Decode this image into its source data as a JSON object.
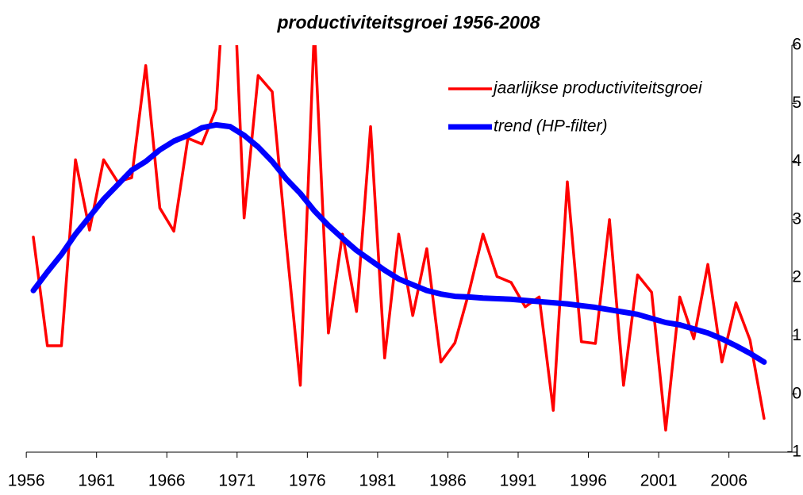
{
  "chart_data": {
    "type": "line",
    "title": "productiviteitsgroei 1956-2008",
    "categories": [
      "1956",
      null,
      null,
      null,
      null,
      "1961",
      null,
      null,
      null,
      null,
      "1966",
      null,
      null,
      null,
      null,
      "1971",
      null,
      null,
      null,
      null,
      "1976",
      null,
      null,
      null,
      null,
      "1981",
      null,
      null,
      null,
      null,
      "1986",
      null,
      null,
      null,
      null,
      "1991",
      null,
      null,
      null,
      null,
      "1996",
      null,
      null,
      null,
      null,
      "2001",
      null,
      null,
      null,
      null,
      "2006",
      null,
      null
    ],
    "series": [
      {
        "name": "jaarlijkse productiviteitsgroei",
        "color": "#ff0000",
        "values": [
          2.7,
          0.83,
          0.83,
          4.03,
          2.82,
          4.03,
          3.65,
          3.72,
          5.65,
          3.2,
          2.8,
          4.4,
          4.3,
          4.9,
          8.7,
          3.03,
          5.48,
          5.2,
          2.6,
          0.15,
          6.3,
          1.05,
          2.75,
          1.42,
          4.6,
          0.62,
          2.75,
          1.35,
          2.5,
          0.55,
          0.88,
          1.75,
          2.75,
          2.02,
          1.92,
          1.5,
          1.67,
          -0.28,
          3.65,
          0.9,
          0.87,
          3.0,
          0.15,
          2.05,
          1.75,
          -0.62,
          1.67,
          0.95,
          2.23,
          0.55,
          1.57,
          0.93,
          -0.42
        ]
      },
      {
        "name": "trend (HP-filter)",
        "color": "#0000ff",
        "values": [
          1.78,
          2.1,
          2.4,
          2.75,
          3.05,
          3.35,
          3.6,
          3.85,
          4.0,
          4.2,
          4.35,
          4.45,
          4.58,
          4.63,
          4.6,
          4.45,
          4.25,
          4.0,
          3.7,
          3.45,
          3.15,
          2.9,
          2.68,
          2.47,
          2.3,
          2.13,
          1.98,
          1.88,
          1.78,
          1.72,
          1.68,
          1.67,
          1.65,
          1.64,
          1.63,
          1.61,
          1.59,
          1.57,
          1.55,
          1.52,
          1.49,
          1.45,
          1.41,
          1.37,
          1.3,
          1.23,
          1.19,
          1.12,
          1.05,
          0.95,
          0.83,
          0.7,
          0.55
        ]
      }
    ],
    "ylim": [
      -1,
      6
    ],
    "yticks": [
      -1,
      0,
      1,
      2,
      3,
      4,
      5,
      6
    ],
    "legend": "upper right",
    "grid": false
  }
}
